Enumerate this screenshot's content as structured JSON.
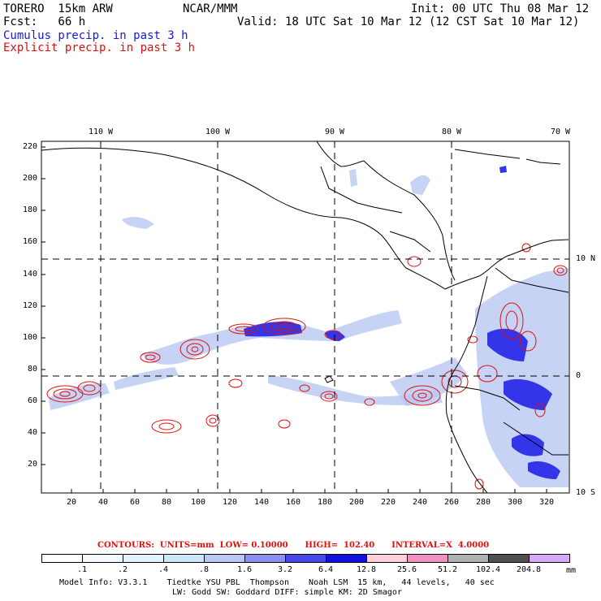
{
  "header": {
    "model": "TORERO  15km ARW",
    "org": "NCAR/MMM",
    "init": "Init: 00 UTC Thu 08 Mar 12",
    "fcst": "Fcst:   66 h",
    "valid": "Valid: 18 UTC Sat 10 Mar 12 (12 CST Sat 10 Mar 12)",
    "field1": "Cumulus precip. in past 3 h",
    "field2": "Explicit precip. in past 3 h"
  },
  "map": {
    "top_ticks": [
      "110 W",
      "100 W",
      "90 W",
      "80 W",
      "70 W"
    ],
    "right_ticks": [
      "10 N",
      "0",
      "10 S"
    ],
    "y_ticks": [
      "220",
      "200",
      "180",
      "160",
      "140",
      "120",
      "100",
      "80",
      "60",
      "40",
      "20"
    ],
    "x_ticks": [
      "20",
      "40",
      "60",
      "80",
      "100",
      "120",
      "140",
      "160",
      "180",
      "200",
      "220",
      "240",
      "260",
      "280",
      "300",
      "320"
    ],
    "colors": {
      "cumulus": "#2030e0",
      "explicit": "#e01010",
      "land": "#000000",
      "grid": "#000000"
    }
  },
  "legend": {
    "contours": "CONTOURS:  UNITS=mm  LOW= 0.10000      HIGH=  102.40      INTERVAL=X  4.0000",
    "values": [
      ".1",
      ".2",
      ".4",
      ".8",
      "1.6",
      "3.2",
      "6.4",
      "12.8",
      "25.6",
      "51.2",
      "102.4",
      "204.8"
    ],
    "colors": [
      "#ffffff",
      "#f4f8ff",
      "#e2f2ff",
      "#cde7fa",
      "#b9c8f3",
      "#8a90f0",
      "#4848e8",
      "#1010e0",
      "#ffd0d8",
      "#f090c0",
      "#b0b0b0",
      "#505050",
      "#d8a8f8"
    ],
    "unit": "mm"
  },
  "footer": {
    "line1": "Model Info: V3.3.1    Tiedtke YSU PBL  Thompson    Noah LSM  15 km,   44 levels,   40 sec",
    "line2": "LW: Godd SW: Goddard DIFF: simple KM: 2D Smagor"
  }
}
